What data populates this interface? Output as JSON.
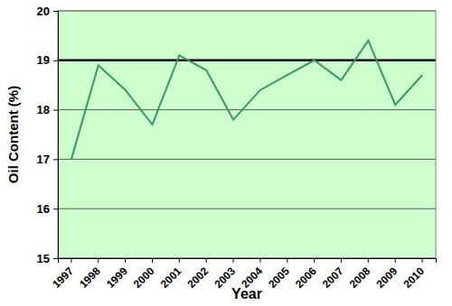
{
  "chart_data": {
    "type": "line",
    "x_label": "Year",
    "y_label": "Oil Content (%)",
    "categories": [
      "1997",
      "1998",
      "1999",
      "2000",
      "2001",
      "2002",
      "2003",
      "2004",
      "2005",
      "2006",
      "2007",
      "2008",
      "2009",
      "2010"
    ],
    "values": [
      17.0,
      18.9,
      18.4,
      17.7,
      19.1,
      18.8,
      17.8,
      18.4,
      18.7,
      19.0,
      18.6,
      19.4,
      18.1,
      18.7
    ],
    "color": "#339966",
    "reference_line": 19,
    "ylim": [
      15,
      20
    ],
    "yticks": [
      15,
      16,
      17,
      18,
      19,
      20
    ],
    "grid": true
  }
}
